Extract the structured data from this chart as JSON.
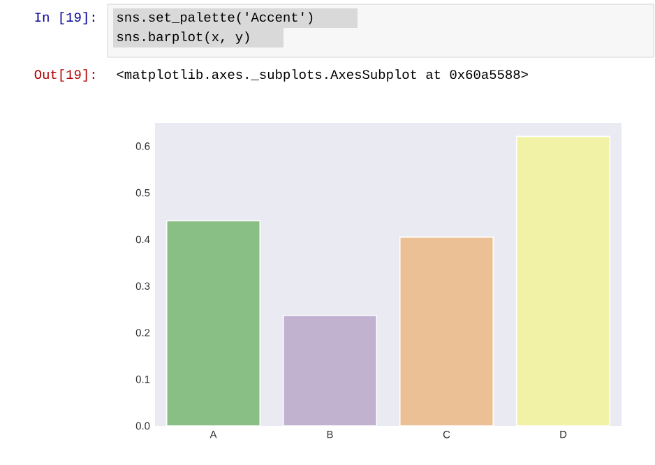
{
  "chart_data": {
    "type": "bar",
    "categories": [
      "A",
      "B",
      "C",
      "D"
    ],
    "values": [
      0.44,
      0.237,
      0.405,
      0.621
    ],
    "colors": [
      "#89bf85",
      "#c1b2d0",
      "#ecc095",
      "#f1f2a5"
    ],
    "ylim": [
      0,
      0.65
    ],
    "yticks": [
      {
        "value": 0,
        "label": "0.0"
      },
      {
        "value": 0.1,
        "label": "0.1"
      },
      {
        "value": 0.2,
        "label": "0.2"
      },
      {
        "value": 0.3,
        "label": "0.3"
      },
      {
        "value": 0.4,
        "label": "0.4"
      },
      {
        "value": 0.5,
        "label": "0.5"
      },
      {
        "value": 0.6,
        "label": "0.6"
      }
    ],
    "grid": false,
    "annotations": [
      "In [19]:",
      "sns.set_palette('Accent')",
      "sns.barplot(x, y)",
      "Out[19]:",
      "<matplotlib.axes._subplots.AxesSubplot at 0x60a5588>"
    ]
  }
}
